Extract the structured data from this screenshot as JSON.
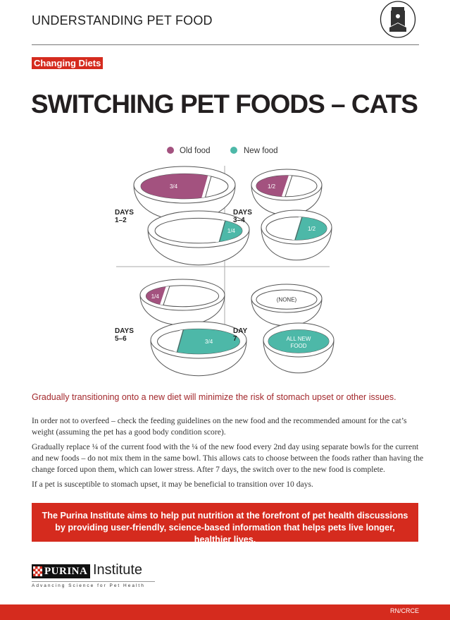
{
  "header": {
    "kicker": "UNDERSTANDING PET FOOD",
    "icon": "pet-food-bag-icon"
  },
  "tag": "Changing Diets",
  "title": "SWITCHING PET FOODS – CATS",
  "legend": {
    "old": "Old food",
    "new": "New food"
  },
  "colors": {
    "old": "#a3527f",
    "new": "#4db8a8",
    "accent": "#d52b1e"
  },
  "panels": [
    {
      "label_line1": "DAYS",
      "label_line2": "1–2",
      "old_bowl": "3/4",
      "new_bowl": "1/4",
      "old_fraction": 0.75,
      "new_fraction": 0.25
    },
    {
      "label_line1": "DAYS",
      "label_line2": "3–4",
      "old_bowl": "1/2",
      "new_bowl": "1/2",
      "old_fraction": 0.5,
      "new_fraction": 0.5
    },
    {
      "label_line1": "DAYS",
      "label_line2": "5–6",
      "old_bowl": "1/4",
      "new_bowl": "3/4",
      "old_fraction": 0.25,
      "new_fraction": 0.75
    },
    {
      "label_line1": "DAY",
      "label_line2": "7",
      "old_bowl": "(NONE)",
      "new_bowl": "ALL NEW FOOD",
      "old_fraction": 0,
      "new_fraction": 1
    }
  ],
  "lead": "Gradually transitioning onto a new diet will minimize the risk of stomach upset or other issues.",
  "paragraphs": [
    "In order not to overfeed – check the feeding guidelines on the new food and the recommended amount for the cat’s weight (assuming the pet has a good body condition score).",
    "Gradually replace ¼ of the current food with the ¼ of the new food every 2nd day using separate bowls for the current and new foods – do not mix them in the same bowl. This allows cats to choose between the foods rather than having the change forced upon them, which can lower stress. After 7 days, the switch over to the new food is complete.",
    "If a pet is susceptible to stomach upset, it may be beneficial to transition over 10 days."
  ],
  "banner": "The Purina Institute aims to help put nutrition at the forefront of pet health discussions by providing user-friendly, science-based information that helps pets live longer, healthier lives.",
  "logo": {
    "brand": "PURINA",
    "name": "Institute",
    "slogan": "Advancing Science for Pet Health"
  },
  "footer": {
    "code": "RN/CRCE"
  }
}
